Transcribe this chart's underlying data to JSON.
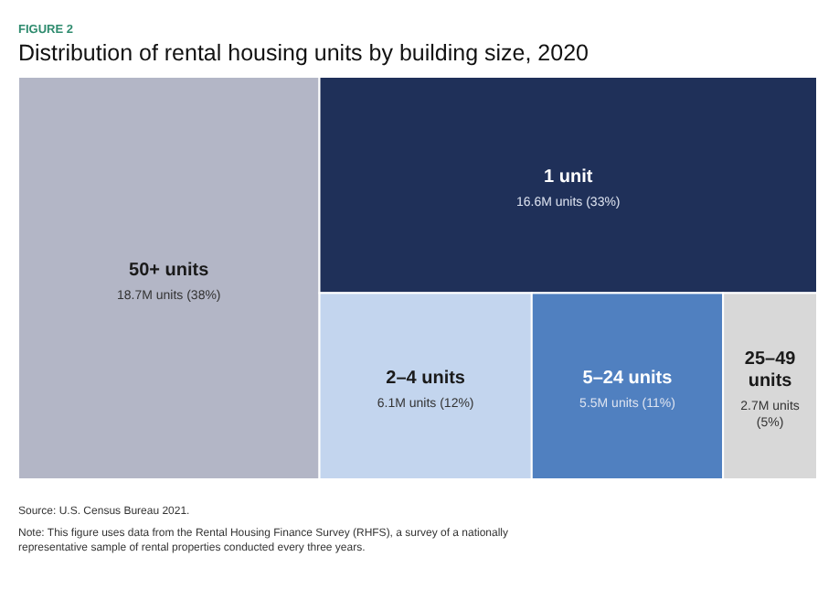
{
  "chart_data": {
    "type": "other",
    "subtitle": "FIGURE 2",
    "title": "Distribution of rental housing units by building size, 2020",
    "categories": [
      "50+ units",
      "1 unit",
      "2–4 units",
      "5–24 units",
      "25–49 units"
    ],
    "values": [
      18.7,
      16.6,
      6.1,
      5.5,
      2.7
    ],
    "value_labels": [
      "18.7M units",
      "16.6M units",
      "6.1M units",
      "5.5M units",
      "2.7M units"
    ],
    "colors": [
      "#b3b6c6",
      "#1f3059",
      "#c3d5ee",
      "#5080c0",
      "#d8d8d8"
    ],
    "annotations": [
      {
        "text": "(38%)",
        "x": "50+ units"
      },
      {
        "text": "(33%)",
        "x": "1 unit"
      },
      {
        "text": "(12%)",
        "x": "2–4 units"
      },
      {
        "text": "(11%)",
        "x": "5–24 units"
      },
      {
        "text": "(5%)",
        "x": "25–49 units"
      },
      "Source: U.S. Census Bureau 2021.",
      "Note: This figure uses data from the Rental Housing Finance Survey (RHFS), a survey of a nationally representative sample of rental properties conducted every three years."
    ]
  }
}
